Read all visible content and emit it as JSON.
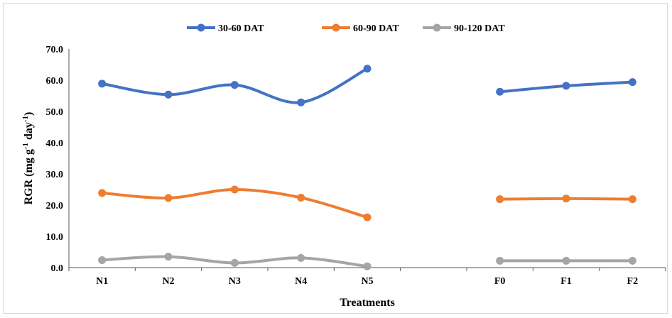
{
  "chart_data": {
    "type": "line",
    "categories": [
      "N1",
      "N2",
      "N3",
      "N4",
      "N5",
      "",
      "F0",
      "F1",
      "F2"
    ],
    "groups": [
      [
        0,
        1,
        2,
        3,
        4
      ],
      [
        6,
        7,
        8
      ]
    ],
    "series": [
      {
        "name": "30-60 DAT",
        "color": "#4472C4",
        "values": [
          58.9,
          55.4,
          58.5,
          52.9,
          63.7,
          null,
          56.3,
          58.2,
          59.4
        ]
      },
      {
        "name": "60-90 DAT",
        "color": "#ED7D31",
        "values": [
          23.9,
          22.3,
          25.0,
          22.4,
          16.1,
          null,
          21.9,
          22.1,
          21.9
        ]
      },
      {
        "name": "90-120 DAT",
        "color": "#A5A5A5",
        "values": [
          2.4,
          3.5,
          1.5,
          3.1,
          0.4,
          null,
          2.2,
          2.2,
          2.2
        ]
      }
    ],
    "xlabel": "Treatments",
    "ylabel": "RGR (mg g-1 day-1)",
    "ylabel_parts": {
      "base": "RGR (mg g",
      "sup1": "-1",
      "mid": " day",
      "sup2": "-1",
      "end": ")"
    },
    "yticks": [
      "0.0",
      "10.0",
      "20.0",
      "30.0",
      "40.0",
      "50.0",
      "60.0",
      "70.0"
    ],
    "ylim": [
      0,
      70
    ],
    "legend_position": "top",
    "grid": false
  }
}
